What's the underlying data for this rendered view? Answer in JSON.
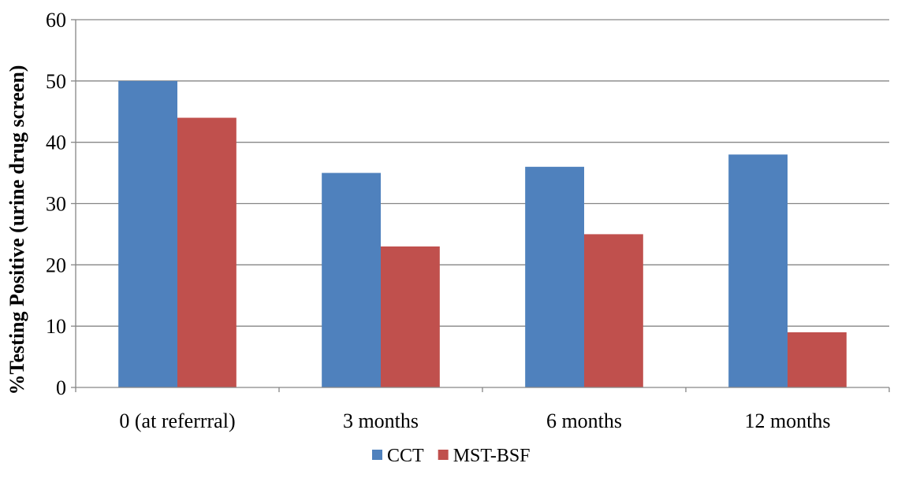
{
  "chart_data": {
    "type": "bar",
    "title": "",
    "xlabel": "",
    "ylabel": "%Testing Positive (urine drug screen)",
    "ylim": [
      0,
      60
    ],
    "yticks": [
      0,
      10,
      20,
      30,
      40,
      50,
      60
    ],
    "grid": true,
    "legend_position": "bottom",
    "categories": [
      "0 (at referrral)",
      "3 months",
      "6 months",
      "12 months"
    ],
    "series": [
      {
        "name": "CCT",
        "color": "#4F81BD",
        "values": [
          50,
          35,
          36,
          38
        ]
      },
      {
        "name": "MST-BSF",
        "color": "#C0504D",
        "values": [
          44,
          23,
          25,
          9
        ]
      }
    ]
  }
}
